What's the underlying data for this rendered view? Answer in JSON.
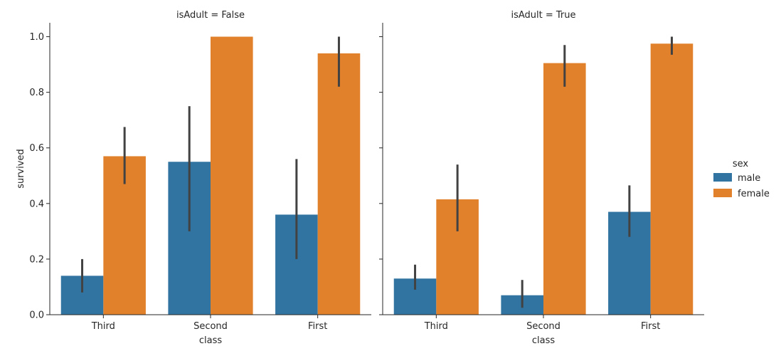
{
  "chart_data": {
    "type": "bar",
    "ylabel": "survived",
    "xlabel": "class",
    "ylim": [
      0,
      1.05
    ],
    "yticks": [
      "0.0",
      "0.2",
      "0.4",
      "0.6",
      "0.8",
      "1.0"
    ],
    "ytick_values": [
      0,
      0.2,
      0.4,
      0.6,
      0.8,
      1.0
    ],
    "categories": [
      "Third",
      "Second",
      "First"
    ],
    "legend": {
      "title": "sex",
      "placement": "right",
      "entries": [
        {
          "name": "male",
          "color": "#3274a1"
        },
        {
          "name": "female",
          "color": "#e1812c"
        }
      ]
    },
    "error_bar_color": "#424242",
    "grid": false,
    "panels": [
      {
        "title": "isAdult = False",
        "series": [
          {
            "name": "male",
            "values": [
              0.14,
              0.55,
              0.36
            ],
            "ci_low": [
              0.08,
              0.3,
              0.2
            ],
            "ci_high": [
              0.2,
              0.75,
              0.56
            ]
          },
          {
            "name": "female",
            "values": [
              0.57,
              1.0,
              0.94
            ],
            "ci_low": [
              0.47,
              1.0,
              0.82
            ],
            "ci_high": [
              0.675,
              1.0,
              1.0
            ]
          }
        ]
      },
      {
        "title": "isAdult = True",
        "series": [
          {
            "name": "male",
            "values": [
              0.13,
              0.07,
              0.37
            ],
            "ci_low": [
              0.09,
              0.025,
              0.28
            ],
            "ci_high": [
              0.18,
              0.125,
              0.465
            ]
          },
          {
            "name": "female",
            "values": [
              0.415,
              0.905,
              0.975
            ],
            "ci_low": [
              0.3,
              0.82,
              0.935
            ],
            "ci_high": [
              0.54,
              0.97,
              1.0
            ]
          }
        ]
      }
    ]
  }
}
